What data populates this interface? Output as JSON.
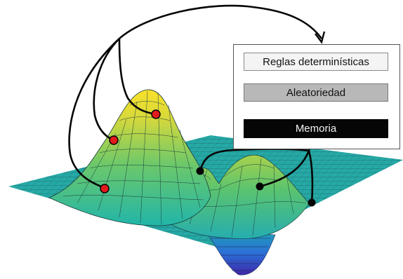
{
  "legend": {
    "reglas_label": "Reglas determinísticas",
    "aleatoriedad_label": "Aleatoriedad",
    "memoria_label": "Memoria"
  },
  "colors": {
    "red_point": "#e31a1c",
    "black_point": "#050505",
    "connector": "#050505",
    "surface_low": "#3e26a8",
    "surface_mid": "#21b5a8",
    "surface_high": "#f9e12a"
  },
  "surface": {
    "description_type": "3d-surface-landscape",
    "red_marker_count": 3,
    "black_marker_count": 3
  }
}
